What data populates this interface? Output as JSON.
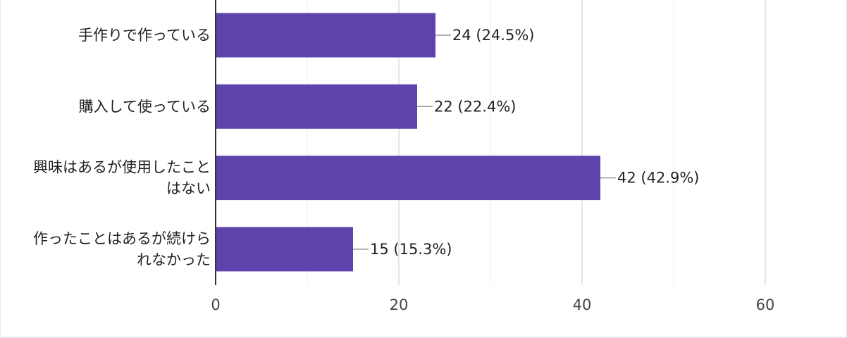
{
  "chart_data": {
    "type": "bar",
    "orientation": "horizontal",
    "categories": [
      [
        "手作りで作っている"
      ],
      [
        "購入して使っている"
      ],
      [
        "興味はあるが使用したこと",
        "はない"
      ],
      [
        "作ったことはあるが続けら",
        "れなかった"
      ]
    ],
    "values": [
      24,
      22,
      42,
      15
    ],
    "value_labels": [
      "24 (24.5%)",
      "22 (22.4%)",
      "42 (42.9%)",
      "15 (15.3%)"
    ],
    "xlim": [
      0,
      60
    ],
    "xticks": [
      0,
      20,
      40,
      60
    ],
    "minor_gridlines": [
      10,
      30,
      50
    ],
    "grid": true,
    "bar_color": "#5e43ad",
    "axis_color": "#333333",
    "grid_color": "#dddddd",
    "minor_grid_color": "#eeeeee",
    "leader_color": "#999999",
    "xlabel": "",
    "ylabel": "",
    "title": ""
  }
}
